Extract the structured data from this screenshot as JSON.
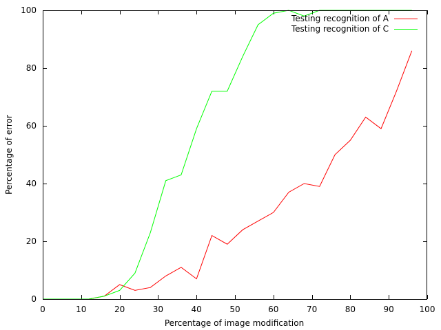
{
  "chart_data": {
    "type": "line",
    "title": "",
    "xlabel": "Percentage of image modification",
    "ylabel": "Percentage of error",
    "xlim": [
      0,
      100
    ],
    "ylim": [
      0,
      100
    ],
    "xticks": [
      0,
      10,
      20,
      30,
      40,
      50,
      60,
      70,
      80,
      90,
      100
    ],
    "yticks": [
      0,
      20,
      40,
      60,
      80,
      100
    ],
    "grid": false,
    "legend_position": "top-right",
    "series": [
      {
        "name": "Testing recognition of A",
        "color": "#ff0000",
        "x": [
          0,
          4,
          8,
          12,
          16,
          20,
          24,
          28,
          32,
          36,
          40,
          44,
          48,
          52,
          56,
          60,
          64,
          68,
          72,
          76,
          80,
          84,
          88,
          92,
          96
        ],
        "y": [
          0,
          0,
          0,
          0,
          1,
          5,
          3,
          4,
          8,
          11,
          7,
          22,
          19,
          24,
          27,
          30,
          37,
          40,
          39,
          50,
          55,
          63,
          59,
          72,
          86
        ]
      },
      {
        "name": "Testing recognition of C",
        "color": "#00ff00",
        "x": [
          0,
          4,
          8,
          12,
          16,
          20,
          24,
          28,
          32,
          36,
          40,
          44,
          48,
          52,
          56,
          60,
          64,
          68,
          72,
          76,
          80,
          84,
          88,
          92,
          96
        ],
        "y": [
          0,
          0,
          0,
          0,
          1,
          3,
          9,
          23,
          41,
          43,
          59,
          72,
          72,
          84,
          95,
          99,
          100,
          98,
          100,
          100,
          100,
          100,
          100,
          100,
          100
        ]
      }
    ]
  }
}
